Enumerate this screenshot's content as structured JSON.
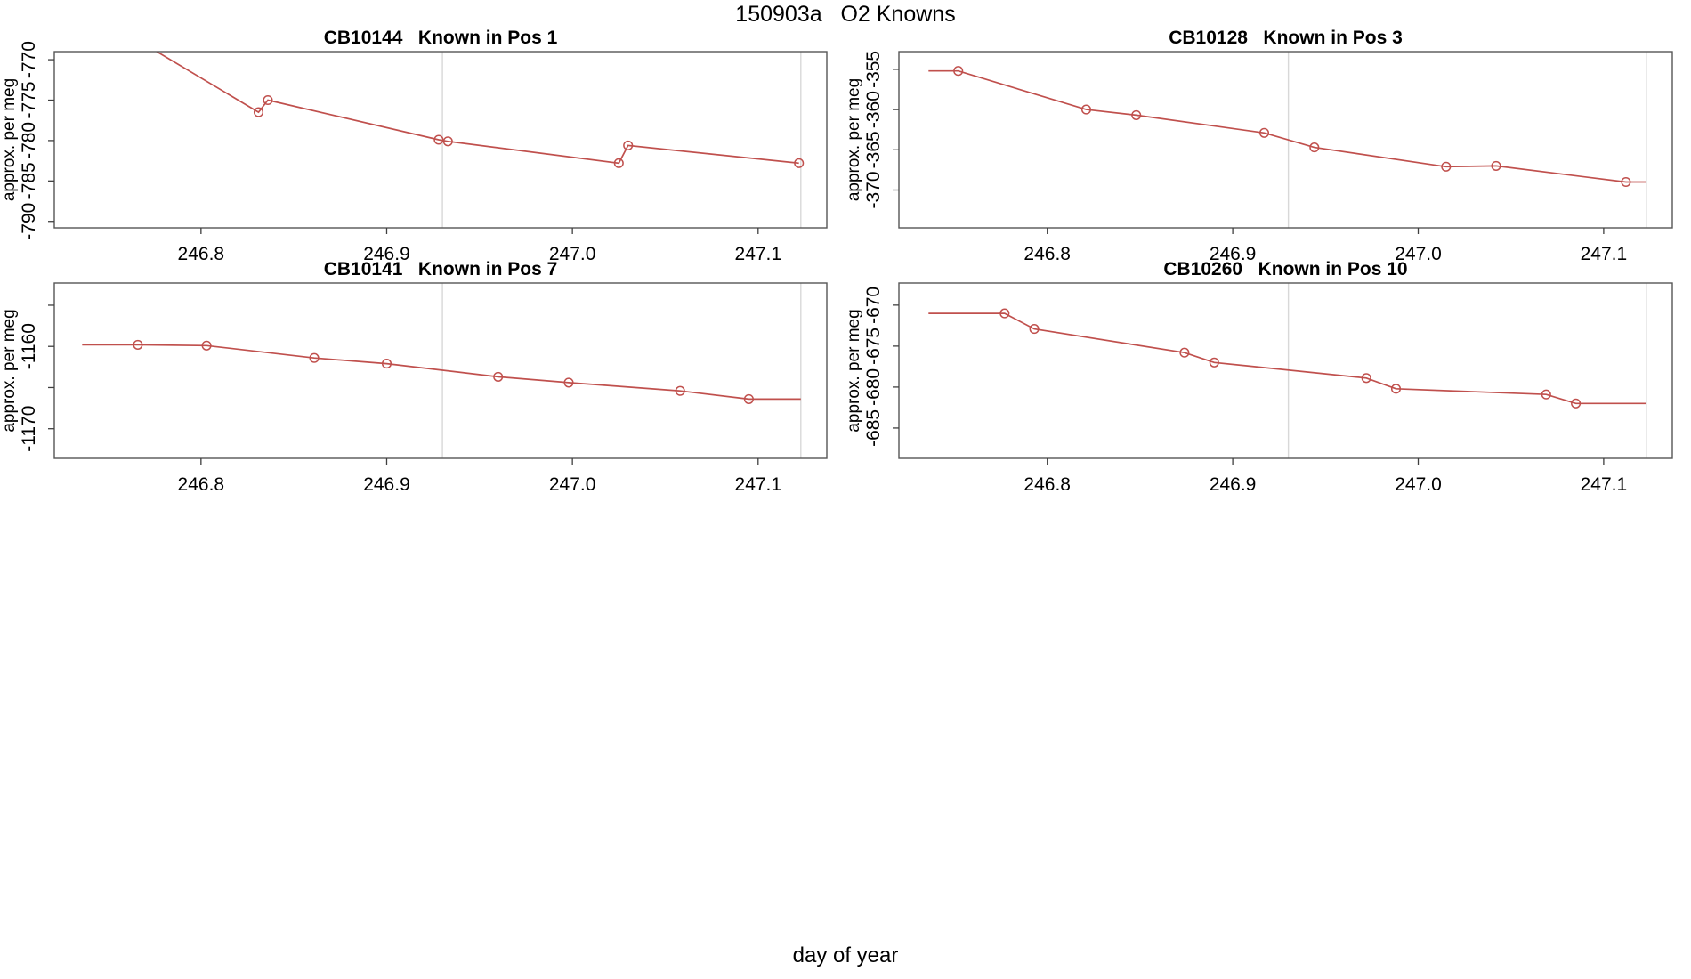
{
  "page": {
    "title": "150903a   O2 Knowns",
    "xlabel": "day of year"
  },
  "style": {
    "line_color": "#c0504d",
    "marker_color": "#c0504d",
    "ref_line_color": "#d8d8d8",
    "box_color": "#565656",
    "tick_color": "#3f3f3f",
    "text_color": "#000000"
  },
  "chart_data": [
    {
      "type": "line",
      "title": "CB10144   Known in Pos 1",
      "ylabel": "approx. per meg",
      "xlim": [
        246.721,
        247.137
      ],
      "ylim": [
        -790.8,
        -769.0
      ],
      "xticks": [
        {
          "v": 246.8,
          "label": "246.8"
        },
        {
          "v": 246.9,
          "label": "246.9"
        },
        {
          "v": 247.0,
          "label": "247.0"
        },
        {
          "v": 247.1,
          "label": "247.1"
        }
      ],
      "yticks": [
        {
          "v": -770,
          "label": "-770"
        },
        {
          "v": -775,
          "label": "-775"
        },
        {
          "v": -780,
          "label": "-780"
        },
        {
          "v": -785,
          "label": "-785"
        },
        {
          "v": -790,
          "label": "-790"
        }
      ],
      "ref_lines_x": [
        246.93,
        247.123
      ],
      "points": [
        {
          "x": 246.736,
          "y": -763.5,
          "marker": false
        },
        {
          "x": 246.831,
          "y": -776.5,
          "marker": true
        },
        {
          "x": 246.836,
          "y": -775.0,
          "marker": true
        },
        {
          "x": 246.928,
          "y": -779.9,
          "marker": true
        },
        {
          "x": 246.933,
          "y": -780.1,
          "marker": true
        },
        {
          "x": 247.025,
          "y": -782.8,
          "marker": true
        },
        {
          "x": 247.03,
          "y": -780.6,
          "marker": true
        },
        {
          "x": 247.122,
          "y": -782.8,
          "marker": true
        }
      ]
    },
    {
      "type": "line",
      "title": "CB10128   Known in Pos 3",
      "ylabel": "approx. per meg",
      "xlim": [
        246.72,
        247.137
      ],
      "ylim": [
        -374.7,
        -352.8
      ],
      "xticks": [
        {
          "v": 246.8,
          "label": "246.8"
        },
        {
          "v": 246.9,
          "label": "246.9"
        },
        {
          "v": 247.0,
          "label": "247.0"
        },
        {
          "v": 247.1,
          "label": "247.1"
        }
      ],
      "yticks": [
        {
          "v": -355,
          "label": "-355"
        },
        {
          "v": -360,
          "label": "-360"
        },
        {
          "v": -365,
          "label": "-365"
        },
        {
          "v": -370,
          "label": "-370"
        }
      ],
      "ref_lines_x": [
        246.93,
        247.123
      ],
      "points": [
        {
          "x": 246.736,
          "y": -355.2,
          "marker": false
        },
        {
          "x": 246.752,
          "y": -355.2,
          "marker": true
        },
        {
          "x": 246.821,
          "y": -360.0,
          "marker": true
        },
        {
          "x": 246.848,
          "y": -360.7,
          "marker": true
        },
        {
          "x": 246.917,
          "y": -362.9,
          "marker": true
        },
        {
          "x": 246.944,
          "y": -364.7,
          "marker": true
        },
        {
          "x": 247.015,
          "y": -367.1,
          "marker": true
        },
        {
          "x": 247.042,
          "y": -367.0,
          "marker": true
        },
        {
          "x": 247.112,
          "y": -369.0,
          "marker": true
        },
        {
          "x": 247.123,
          "y": -369.0,
          "marker": false
        }
      ]
    },
    {
      "type": "line",
      "title": "CB10141   Known in Pos 7",
      "ylabel": "approx. per meg",
      "xlim": [
        246.721,
        247.137
      ],
      "ylim": [
        -1173.6,
        -1152.3
      ],
      "xticks": [
        {
          "v": 246.8,
          "label": "246.8"
        },
        {
          "v": 246.9,
          "label": "246.9"
        },
        {
          "v": 247.0,
          "label": "247.0"
        },
        {
          "v": 247.1,
          "label": "247.1"
        }
      ],
      "yticks": [
        {
          "v": -1155,
          "label": ""
        },
        {
          "v": -1160,
          "label": "-1160"
        },
        {
          "v": -1165,
          "label": ""
        },
        {
          "v": -1170,
          "label": "-1170"
        }
      ],
      "ref_lines_x": [
        246.93,
        247.123
      ],
      "points": [
        {
          "x": 246.736,
          "y": -1159.8,
          "marker": false
        },
        {
          "x": 246.766,
          "y": -1159.8,
          "marker": true
        },
        {
          "x": 246.803,
          "y": -1159.9,
          "marker": true
        },
        {
          "x": 246.861,
          "y": -1161.4,
          "marker": true
        },
        {
          "x": 246.9,
          "y": -1162.1,
          "marker": true
        },
        {
          "x": 246.96,
          "y": -1163.7,
          "marker": true
        },
        {
          "x": 246.998,
          "y": -1164.4,
          "marker": true
        },
        {
          "x": 247.058,
          "y": -1165.4,
          "marker": true
        },
        {
          "x": 247.095,
          "y": -1166.4,
          "marker": true
        },
        {
          "x": 247.123,
          "y": -1166.4,
          "marker": false
        }
      ]
    },
    {
      "type": "line",
      "title": "CB10260   Known in Pos 10",
      "ylabel": "approx. per meg",
      "xlim": [
        246.72,
        247.137
      ],
      "ylim": [
        -688.7,
        -667.3
      ],
      "xticks": [
        {
          "v": 246.8,
          "label": "246.8"
        },
        {
          "v": 246.9,
          "label": "246.9"
        },
        {
          "v": 247.0,
          "label": "247.0"
        },
        {
          "v": 247.1,
          "label": "247.1"
        }
      ],
      "yticks": [
        {
          "v": -670,
          "label": "-670"
        },
        {
          "v": -675,
          "label": "-675"
        },
        {
          "v": -680,
          "label": "-680"
        },
        {
          "v": -685,
          "label": "-685"
        }
      ],
      "ref_lines_x": [
        246.93,
        247.123
      ],
      "points": [
        {
          "x": 246.736,
          "y": -671.0,
          "marker": false
        },
        {
          "x": 246.777,
          "y": -671.0,
          "marker": true
        },
        {
          "x": 246.793,
          "y": -672.9,
          "marker": true
        },
        {
          "x": 246.874,
          "y": -675.8,
          "marker": true
        },
        {
          "x": 246.89,
          "y": -677.0,
          "marker": true
        },
        {
          "x": 246.972,
          "y": -678.9,
          "marker": true
        },
        {
          "x": 246.988,
          "y": -680.2,
          "marker": true
        },
        {
          "x": 247.069,
          "y": -680.9,
          "marker": true
        },
        {
          "x": 247.085,
          "y": -682.0,
          "marker": true
        },
        {
          "x": 247.123,
          "y": -682.0,
          "marker": false
        }
      ]
    }
  ]
}
